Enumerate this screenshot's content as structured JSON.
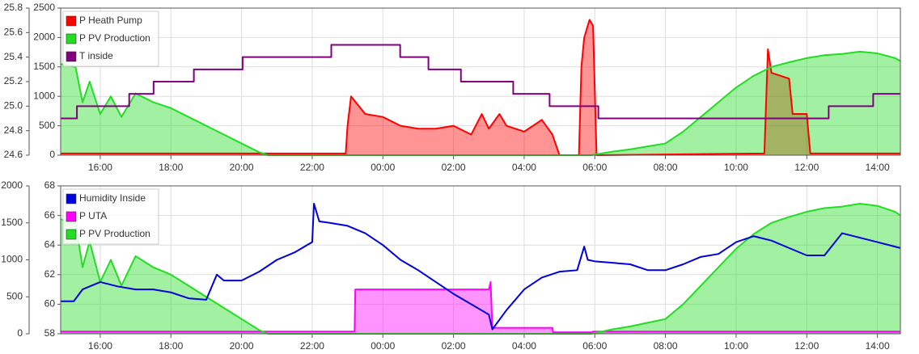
{
  "chart_data": [
    {
      "type": "line",
      "legend": "top-left",
      "grid": true,
      "xlim": [
        14.88,
        38.65
      ],
      "xticks": [
        {
          "value": 16,
          "label": "16:00"
        },
        {
          "value": 18,
          "label": "18:00"
        },
        {
          "value": 20,
          "label": "20:00"
        },
        {
          "value": 22,
          "label": "22:00"
        },
        {
          "value": 24,
          "label": "00:00"
        },
        {
          "value": 26,
          "label": "02:00"
        },
        {
          "value": 28,
          "label": "04:00"
        },
        {
          "value": 30,
          "label": "06:00"
        },
        {
          "value": 32,
          "label": "08:00"
        },
        {
          "value": 34,
          "label": "10:00"
        },
        {
          "value": 36,
          "label": "12:00"
        },
        {
          "value": 38,
          "label": "14:00"
        }
      ],
      "ylim": [
        0,
        2500
      ],
      "yticks": [
        0,
        500,
        1000,
        1500,
        2000,
        2500
      ],
      "y2lim": [
        24.6,
        25.8
      ],
      "y2ticks": [
        24.6,
        24.8,
        {
          "value": 25,
          "label": "25.0"
        },
        25.2,
        25.4,
        25.6,
        25.8
      ],
      "series": [
        {
          "name": "P Heath Pump",
          "color": "#ff0000",
          "fill": true,
          "x": [
            14.88,
            22.95,
            23.0,
            23.1,
            23.5,
            24,
            24.5,
            25,
            25.5,
            26,
            26.5,
            26.8,
            27,
            27.3,
            27.5,
            28,
            28.5,
            28.8,
            29,
            29.55,
            29.62,
            29.7,
            29.85,
            29.95,
            30.05,
            34.8,
            34.9,
            35,
            35.5,
            35.6,
            36,
            36.1,
            38.65
          ],
          "values": [
            30,
            30,
            500,
            1000,
            700,
            650,
            500,
            450,
            450,
            500,
            350,
            700,
            450,
            700,
            500,
            400,
            600,
            350,
            0,
            0,
            1500,
            2000,
            2300,
            2200,
            0,
            30,
            1800,
            1400,
            1300,
            700,
            700,
            30,
            30
          ]
        },
        {
          "name": "P PV Production",
          "color": "#22dd22",
          "fill": true,
          "x": [
            14.88,
            15.3,
            15.5,
            15.7,
            16,
            16.3,
            16.6,
            17,
            17.5,
            18,
            18.5,
            19,
            19.5,
            20,
            20.5,
            20.75,
            29.9,
            30.5,
            31,
            31.5,
            32,
            32.5,
            33,
            33.5,
            34,
            34.5,
            35,
            35.5,
            36,
            36.5,
            37,
            37.5,
            38,
            38.5,
            38.65
          ],
          "values": [
            1550,
            1500,
            900,
            1250,
            700,
            1000,
            650,
            1050,
            900,
            800,
            650,
            500,
            350,
            200,
            50,
            0,
            0,
            60,
            100,
            150,
            200,
            400,
            650,
            900,
            1150,
            1350,
            1500,
            1580,
            1650,
            1700,
            1720,
            1760,
            1730,
            1650,
            1600
          ]
        },
        {
          "name": "T inside",
          "color": "#800080",
          "fill": false,
          "axis": "y2",
          "x": [
            14.88,
            15.34,
            15.34,
            16.82,
            16.82,
            17.51,
            17.51,
            18.65,
            18.65,
            20.03,
            20.03,
            22.54,
            22.54,
            24.49,
            24.49,
            25.29,
            25.29,
            26.21,
            26.21,
            27.69,
            27.69,
            28.72,
            28.72,
            30.1,
            30.1,
            36.62,
            36.62,
            37.88,
            37.88,
            38.65
          ],
          "values": [
            24.9,
            24.9,
            25.0,
            25.0,
            25.1,
            25.1,
            25.2,
            25.2,
            25.3,
            25.3,
            25.4,
            25.4,
            25.5,
            25.5,
            25.4,
            25.4,
            25.3,
            25.3,
            25.2,
            25.2,
            25.1,
            25.1,
            25.0,
            25.0,
            24.9,
            24.9,
            25.0,
            25.0,
            25.1,
            25.1
          ]
        }
      ]
    },
    {
      "type": "line",
      "legend": "top-left",
      "grid": true,
      "xlim": [
        14.88,
        38.65
      ],
      "xticks": [
        {
          "value": 16,
          "label": "16:00"
        },
        {
          "value": 18,
          "label": "18:00"
        },
        {
          "value": 20,
          "label": "20:00"
        },
        {
          "value": 22,
          "label": "22:00"
        },
        {
          "value": 24,
          "label": "00:00"
        },
        {
          "value": 26,
          "label": "02:00"
        },
        {
          "value": 28,
          "label": "04:00"
        },
        {
          "value": 30,
          "label": "06:00"
        },
        {
          "value": 32,
          "label": "08:00"
        },
        {
          "value": 34,
          "label": "10:00"
        },
        {
          "value": 36,
          "label": "12:00"
        },
        {
          "value": 38,
          "label": "14:00"
        }
      ],
      "ylim": [
        58,
        68
      ],
      "yticks": [
        58,
        60,
        62,
        64,
        66,
        68
      ],
      "y2lim": [
        0,
        2000
      ],
      "y2ticks": [
        0,
        500,
        1000,
        1500,
        2000
      ],
      "series": [
        {
          "name": "Humidity Inside",
          "color": "#0000dd",
          "fill": false,
          "x": [
            14.88,
            15.25,
            15.5,
            16,
            16.5,
            17,
            17.5,
            18,
            18.5,
            19,
            19.3,
            19.5,
            20,
            20.5,
            21,
            21.5,
            22,
            22.05,
            22.2,
            22.5,
            23,
            23.5,
            24,
            24.5,
            25,
            25.5,
            26,
            26.5,
            27,
            27.1,
            27.5,
            28,
            28.5,
            29,
            29.5,
            29.7,
            29.8,
            30,
            30.5,
            31,
            31.5,
            32,
            32.5,
            33,
            33.5,
            34,
            34.5,
            35,
            35.5,
            36,
            36.5,
            37,
            37.5,
            38,
            38.65
          ],
          "values": [
            60.2,
            60.2,
            61.0,
            61.5,
            61.2,
            61.0,
            61.0,
            60.8,
            60.4,
            60.3,
            62.0,
            61.6,
            61.6,
            62.2,
            63.0,
            63.5,
            64.2,
            66.8,
            65.6,
            65.5,
            65.3,
            64.8,
            64.0,
            63.0,
            62.3,
            61.5,
            60.7,
            60.0,
            59.3,
            58.3,
            59.6,
            61.0,
            61.8,
            62.2,
            62.3,
            63.9,
            63.0,
            62.9,
            62.8,
            62.7,
            62.3,
            62.3,
            62.7,
            63.2,
            63.4,
            64.2,
            64.6,
            64.3,
            63.8,
            63.3,
            63.3,
            64.8,
            64.5,
            64.2,
            63.8
          ]
        },
        {
          "name": "P UTA",
          "color": "#ff00ff",
          "fill": true,
          "axis": "y2",
          "x": [
            14.88,
            23.2,
            23.22,
            27.0,
            27.05,
            27.1,
            28.8,
            28.82,
            29.9,
            29.95,
            38.65
          ],
          "values": [
            30,
            30,
            600,
            600,
            700,
            80,
            80,
            20,
            20,
            30,
            30
          ]
        },
        {
          "name": "P PV Production",
          "color": "#22dd22",
          "fill": true,
          "axis": "y2",
          "x": [
            14.88,
            15.3,
            15.5,
            15.7,
            16,
            16.3,
            16.6,
            17,
            17.5,
            18,
            18.5,
            19,
            19.5,
            20,
            20.5,
            20.75,
            29.9,
            30.5,
            31,
            31.5,
            32,
            32.5,
            33,
            33.5,
            34,
            34.5,
            35,
            35.5,
            36,
            36.5,
            37,
            37.5,
            38,
            38.5,
            38.65
          ],
          "values": [
            1550,
            1500,
            900,
            1250,
            700,
            1000,
            650,
            1050,
            900,
            800,
            650,
            500,
            350,
            200,
            50,
            0,
            0,
            60,
            100,
            150,
            200,
            400,
            650,
            900,
            1150,
            1350,
            1500,
            1580,
            1650,
            1700,
            1720,
            1760,
            1730,
            1650,
            1600
          ]
        }
      ]
    }
  ]
}
